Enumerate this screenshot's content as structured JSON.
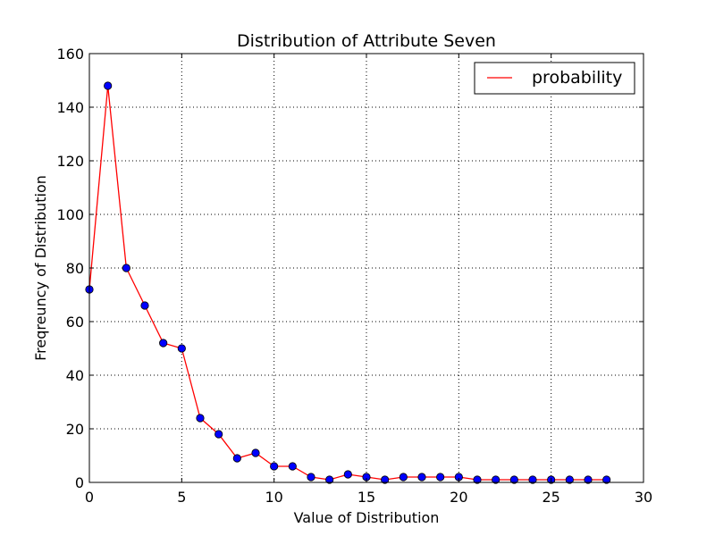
{
  "chart_data": {
    "type": "line",
    "title": "Distribution of Attribute Seven",
    "xlabel": "Value of Distribution",
    "ylabel": "Freqreuncy of Distribution",
    "xlim": [
      0,
      30
    ],
    "ylim": [
      0,
      160
    ],
    "x_ticks": [
      "0",
      "5",
      "10",
      "15",
      "20",
      "25",
      "30"
    ],
    "y_ticks": [
      "0",
      "20",
      "40",
      "60",
      "80",
      "100",
      "120",
      "140",
      "160"
    ],
    "grid": true,
    "legend_position": "top-right",
    "series": [
      {
        "name": "probability",
        "line_color": "#ff0000",
        "marker_color": "#0000ff",
        "x": [
          0,
          1,
          2,
          3,
          4,
          5,
          6,
          7,
          8,
          9,
          10,
          11,
          12,
          13,
          14,
          15,
          16,
          17,
          18,
          19,
          20,
          21,
          22,
          23,
          24,
          25,
          26,
          27,
          28
        ],
        "y": [
          72,
          148,
          80,
          66,
          52,
          50,
          24,
          18,
          9,
          11,
          6,
          6,
          2,
          1,
          3,
          2,
          1,
          2,
          2,
          2,
          2,
          1,
          1,
          1,
          1,
          1,
          1,
          1,
          1
        ]
      }
    ]
  }
}
